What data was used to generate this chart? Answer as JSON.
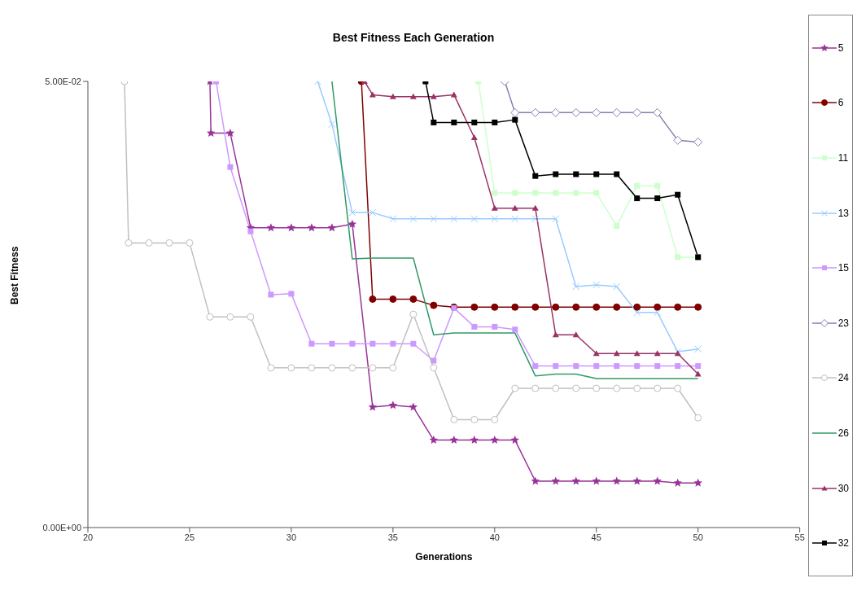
{
  "chart_data": {
    "type": "line",
    "title": "Best Fitness Each Generation",
    "xlabel": "Generations",
    "ylabel": "Best Fitness",
    "xlim": [
      20,
      55
    ],
    "ylim": [
      0,
      0.05
    ],
    "xticks": [
      20,
      25,
      30,
      35,
      40,
      45,
      50,
      55
    ],
    "yticks": [
      {
        "value": 0,
        "label": "0.00E+00"
      },
      {
        "value": 0.05,
        "label": "5.00E-02"
      }
    ],
    "grid": false,
    "legend": "right",
    "series": [
      {
        "name": "5",
        "color": "#993399",
        "marker": "star",
        "x": [
          26,
          26.05,
          27,
          28,
          29,
          30,
          31,
          32,
          33,
          34,
          35,
          36,
          37,
          38,
          39,
          40,
          41,
          42,
          43,
          44,
          45,
          46,
          47,
          48,
          49,
          50
        ],
        "values": [
          0.05,
          0.0442,
          0.0442,
          0.0336,
          0.0336,
          0.0336,
          0.0336,
          0.0336,
          0.034,
          0.0135,
          0.0137,
          0.0135,
          0.0098,
          0.0098,
          0.0098,
          0.0098,
          0.0098,
          0.0052,
          0.0052,
          0.0052,
          0.0052,
          0.0052,
          0.0052,
          0.0052,
          0.005,
          0.005
        ]
      },
      {
        "name": "6",
        "color": "#800000",
        "marker": "circle",
        "x": [
          33.45,
          34,
          35,
          36,
          37,
          38,
          39,
          40,
          41,
          42,
          43,
          44,
          45,
          46,
          47,
          48,
          49,
          50
        ],
        "values": [
          0.05,
          0.0256,
          0.0256,
          0.0256,
          0.0249,
          0.0247,
          0.0247,
          0.0247,
          0.0247,
          0.0247,
          0.0247,
          0.0247,
          0.0247,
          0.0247,
          0.0247,
          0.0247,
          0.0247,
          0.0247
        ]
      },
      {
        "name": "11",
        "color": "#ccffcc",
        "marker": "square",
        "x": [
          39.2,
          40,
          41,
          42,
          43,
          44,
          45,
          46,
          47,
          48,
          49,
          50
        ],
        "values": [
          0.05,
          0.0375,
          0.0375,
          0.0375,
          0.0375,
          0.0375,
          0.0375,
          0.0338,
          0.0383,
          0.0383,
          0.0303,
          0.0303
        ]
      },
      {
        "name": "13",
        "color": "#99ccff",
        "marker": "cross",
        "x": [
          31.3,
          32,
          33,
          34,
          35,
          36,
          37,
          38,
          39,
          40,
          41,
          42,
          43,
          44,
          45,
          46,
          47,
          48,
          49,
          50
        ],
        "values": [
          0.05,
          0.0452,
          0.0353,
          0.0353,
          0.0346,
          0.0346,
          0.0346,
          0.0346,
          0.0346,
          0.0346,
          0.0346,
          0.0346,
          0.0346,
          0.027,
          0.0272,
          0.027,
          0.0241,
          0.0241,
          0.0197,
          0.02
        ]
      },
      {
        "name": "15",
        "color": "#cc99ff",
        "marker": "square",
        "x": [
          26.3,
          27,
          28,
          29,
          30,
          31,
          32,
          33,
          34,
          35,
          36,
          37,
          38,
          39,
          40,
          41,
          42,
          43,
          44,
          45,
          46,
          47,
          48,
          49,
          50
        ],
        "values": [
          0.05,
          0.0404,
          0.0332,
          0.0261,
          0.0262,
          0.0206,
          0.0206,
          0.0206,
          0.0206,
          0.0206,
          0.0206,
          0.0187,
          0.0246,
          0.0225,
          0.0225,
          0.0222,
          0.0181,
          0.0181,
          0.0181,
          0.0181,
          0.0181,
          0.0181,
          0.0181,
          0.0181,
          0.0181
        ]
      },
      {
        "name": "23",
        "color": "#8080b0",
        "marker": "diamond",
        "x": [
          40.5,
          41,
          42,
          43,
          44,
          45,
          46,
          47,
          48,
          49,
          50
        ],
        "values": [
          0.05,
          0.0465,
          0.0465,
          0.0465,
          0.0465,
          0.0465,
          0.0465,
          0.0465,
          0.0465,
          0.0434,
          0.0432
        ]
      },
      {
        "name": "24",
        "color": "#c0c0c0",
        "marker": "circle",
        "x": [
          21.8,
          22,
          23,
          24,
          25,
          26,
          27,
          28,
          29,
          30,
          31,
          32,
          33,
          34,
          35,
          36,
          37,
          38,
          39,
          40,
          41,
          42,
          43,
          44,
          45,
          46,
          47,
          48,
          49,
          50
        ],
        "values": [
          0.05,
          0.0319,
          0.0319,
          0.0319,
          0.0319,
          0.0236,
          0.0236,
          0.0236,
          0.0179,
          0.0179,
          0.0179,
          0.0179,
          0.0179,
          0.0179,
          0.0179,
          0.0239,
          0.0179,
          0.0121,
          0.0121,
          0.0121,
          0.0156,
          0.0156,
          0.0156,
          0.0156,
          0.0156,
          0.0156,
          0.0156,
          0.0156,
          0.0156,
          0.0123
        ]
      },
      {
        "name": "26",
        "color": "#339966",
        "marker": "none",
        "x": [
          32,
          33,
          34,
          35,
          36,
          37,
          38,
          39,
          40,
          41,
          42,
          43,
          44,
          45,
          46,
          47,
          48,
          49,
          50
        ],
        "values": [
          0.05,
          0.0301,
          0.0302,
          0.0302,
          0.0302,
          0.0216,
          0.0218,
          0.0218,
          0.0218,
          0.0218,
          0.017,
          0.0172,
          0.0172,
          0.0167,
          0.0167,
          0.0167,
          0.0167,
          0.0167,
          0.0167
        ]
      },
      {
        "name": "30",
        "color": "#993366",
        "marker": "triangle",
        "x": [
          33.6,
          34,
          35,
          36,
          37,
          38,
          39,
          40,
          41,
          42,
          43,
          44,
          45,
          46,
          47,
          48,
          49,
          50
        ],
        "values": [
          0.05,
          0.0485,
          0.0483,
          0.0483,
          0.0483,
          0.0485,
          0.0437,
          0.0358,
          0.0358,
          0.0358,
          0.0216,
          0.0216,
          0.0195,
          0.0195,
          0.0195,
          0.0195,
          0.0195,
          0.0172
        ]
      },
      {
        "name": "32",
        "color": "#000000",
        "marker": "square",
        "x": [
          36.6,
          37,
          38,
          39,
          40,
          41,
          42,
          43,
          44,
          45,
          46,
          47,
          48,
          49,
          50
        ],
        "values": [
          0.05,
          0.0454,
          0.0454,
          0.0454,
          0.0454,
          0.0457,
          0.0394,
          0.0396,
          0.0396,
          0.0396,
          0.0396,
          0.0369,
          0.0369,
          0.0373,
          0.0303
        ]
      }
    ]
  }
}
